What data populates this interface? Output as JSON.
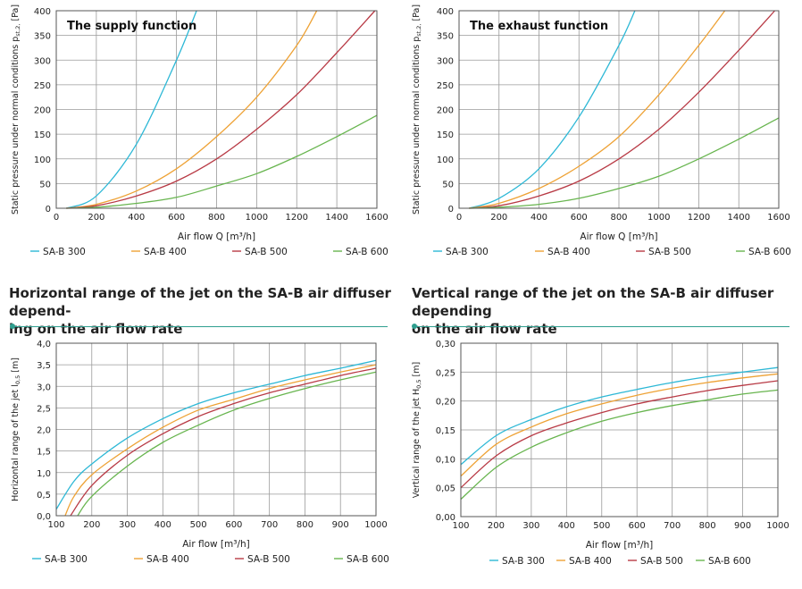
{
  "colors": {
    "sab300": "#2db8d6",
    "sab400": "#eea235",
    "sab500": "#b83a45",
    "sab600": "#68b54f",
    "grid": "#9a9a9a",
    "accent": "#2f9f8f"
  },
  "headings": {
    "horizontal": [
      "Horizontal range of the jet on the SA-B air diffuser depend-",
      "ing on the air flow rate"
    ],
    "vertical": [
      "Vertical range of the jet on the SA-B air diffuser depending",
      "on the air flow rate"
    ]
  },
  "chart_data": [
    {
      "id": "supply",
      "type": "line",
      "title": "The supply function",
      "xlabel": "Air flow Q [m³/h]",
      "ylabel": "Static pressure under normal conditions p",
      "ylabel_sub": "st,2,",
      "ylabel_unit": "[Pa]",
      "xlim": [
        0,
        1600
      ],
      "ylim": [
        0,
        400
      ],
      "xticks": [
        "0",
        "200",
        "400",
        "600",
        "800",
        "1000",
        "1200",
        "1400",
        "1600"
      ],
      "yticks": [
        "0",
        "50",
        "100",
        "150",
        "200",
        "250",
        "300",
        "350",
        "400"
      ],
      "grid": true,
      "legend_position": "bottom",
      "series": [
        {
          "name": "SA-B 300",
          "color": "#2db8d6",
          "x": [
            50,
            200,
            400,
            600,
            700
          ],
          "y": [
            0,
            25,
            130,
            300,
            400
          ]
        },
        {
          "name": "SA-B 400",
          "color": "#eea235",
          "x": [
            50,
            200,
            400,
            600,
            800,
            1000,
            1200,
            1300
          ],
          "y": [
            0,
            8,
            35,
            80,
            145,
            225,
            330,
            400
          ]
        },
        {
          "name": "SA-B 500",
          "color": "#b83a45",
          "x": [
            50,
            200,
            400,
            600,
            800,
            1000,
            1200,
            1400,
            1590
          ],
          "y": [
            0,
            5,
            25,
            55,
            100,
            160,
            230,
            315,
            400
          ]
        },
        {
          "name": "SA-B 600",
          "color": "#68b54f",
          "x": [
            50,
            200,
            400,
            600,
            800,
            1000,
            1200,
            1400,
            1600
          ],
          "y": [
            0,
            2,
            10,
            22,
            45,
            70,
            105,
            145,
            188
          ]
        }
      ]
    },
    {
      "id": "exhaust",
      "type": "line",
      "title": "The exhaust function",
      "xlabel": "Air flow Q [m³/h]",
      "ylabel": "Static pressure under normal conditions p",
      "ylabel_sub": "st,2,",
      "ylabel_unit": "[Pa]",
      "xlim": [
        0,
        1600
      ],
      "ylim": [
        0,
        400
      ],
      "xticks": [
        "0",
        "200",
        "400",
        "600",
        "800",
        "1000",
        "1200",
        "1400",
        "1600"
      ],
      "yticks": [
        "0",
        "50",
        "100",
        "150",
        "200",
        "250",
        "300",
        "350",
        "400"
      ],
      "grid": true,
      "legend_position": "bottom",
      "series": [
        {
          "name": "SA-B 300",
          "color": "#2db8d6",
          "x": [
            50,
            200,
            400,
            600,
            800,
            880
          ],
          "y": [
            0,
            20,
            80,
            185,
            330,
            400
          ]
        },
        {
          "name": "SA-B 400",
          "color": "#eea235",
          "x": [
            50,
            200,
            400,
            600,
            800,
            1000,
            1200,
            1330
          ],
          "y": [
            0,
            10,
            40,
            85,
            145,
            230,
            330,
            400
          ]
        },
        {
          "name": "SA-B 500",
          "color": "#b83a45",
          "x": [
            50,
            200,
            400,
            600,
            800,
            1000,
            1200,
            1400,
            1580
          ],
          "y": [
            0,
            5,
            25,
            55,
            100,
            160,
            235,
            320,
            400
          ]
        },
        {
          "name": "SA-B 600",
          "color": "#68b54f",
          "x": [
            50,
            200,
            400,
            600,
            800,
            1000,
            1200,
            1400,
            1600
          ],
          "y": [
            0,
            2,
            8,
            20,
            40,
            65,
            100,
            140,
            183
          ]
        }
      ]
    },
    {
      "id": "horizontal",
      "type": "line",
      "title": "",
      "xlabel": "Air flow [m³/h]",
      "ylabel": "Horizontal range of the jet l",
      "ylabel_sub": "0,5",
      "ylabel_unit": "[m]",
      "xlim": [
        100,
        1000
      ],
      "ylim": [
        0,
        4
      ],
      "xticks": [
        "100",
        "200",
        "300",
        "400",
        "500",
        "600",
        "700",
        "800",
        "900",
        "1000"
      ],
      "yticks": [
        "0,0",
        "0,5",
        "1,0",
        "1,5",
        "2,0",
        "2,5",
        "3,0",
        "3,5",
        "4,0"
      ],
      "grid": true,
      "legend_position": "bottom",
      "series": [
        {
          "name": "SA-B 300",
          "color": "#2db8d6",
          "x": [
            100,
            150,
            200,
            300,
            400,
            500,
            600,
            700,
            800,
            900,
            1000
          ],
          "y": [
            0.15,
            0.8,
            1.2,
            1.8,
            2.25,
            2.6,
            2.85,
            3.05,
            3.25,
            3.42,
            3.6
          ]
        },
        {
          "name": "SA-B 400",
          "color": "#eea235",
          "x": [
            125,
            150,
            200,
            300,
            400,
            500,
            600,
            700,
            800,
            900,
            1000
          ],
          "y": [
            0,
            0.45,
            0.95,
            1.55,
            2.05,
            2.45,
            2.7,
            2.95,
            3.15,
            3.33,
            3.5
          ]
        },
        {
          "name": "SA-B 500",
          "color": "#b83a45",
          "x": [
            140,
            200,
            300,
            400,
            500,
            600,
            700,
            800,
            900,
            1000
          ],
          "y": [
            0,
            0.7,
            1.4,
            1.9,
            2.3,
            2.6,
            2.85,
            3.05,
            3.25,
            3.42
          ]
        },
        {
          "name": "SA-B 600",
          "color": "#68b54f",
          "x": [
            160,
            200,
            300,
            400,
            500,
            600,
            700,
            800,
            900,
            1000
          ],
          "y": [
            0,
            0.45,
            1.15,
            1.7,
            2.1,
            2.45,
            2.72,
            2.95,
            3.15,
            3.33
          ]
        }
      ]
    },
    {
      "id": "vertical",
      "type": "line",
      "title": "",
      "xlabel": "Air flow [m³/h]",
      "ylabel": "Vertical range of the jet H",
      "ylabel_sub": "0,5",
      "ylabel_unit": "[m]",
      "xlim": [
        100,
        1000
      ],
      "ylim": [
        0,
        0.3
      ],
      "xticks": [
        "100",
        "200",
        "300",
        "400",
        "500",
        "600",
        "700",
        "800",
        "900",
        "1000"
      ],
      "yticks": [
        "0,00",
        "0,05",
        "0,10",
        "0,15",
        "0,20",
        "0,25",
        "0,30"
      ],
      "grid": true,
      "legend_position": "bottom",
      "series": [
        {
          "name": "SA-B 300",
          "color": "#2db8d6",
          "x": [
            100,
            200,
            300,
            400,
            500,
            600,
            700,
            800,
            900,
            1000
          ],
          "y": [
            0.09,
            0.14,
            0.168,
            0.19,
            0.207,
            0.22,
            0.232,
            0.242,
            0.25,
            0.258
          ]
        },
        {
          "name": "SA-B 400",
          "color": "#eea235",
          "x": [
            100,
            200,
            300,
            400,
            500,
            600,
            700,
            800,
            900,
            1000
          ],
          "y": [
            0.07,
            0.125,
            0.155,
            0.178,
            0.195,
            0.21,
            0.222,
            0.232,
            0.24,
            0.247
          ]
        },
        {
          "name": "SA-B 500",
          "color": "#b83a45",
          "x": [
            100,
            200,
            300,
            400,
            500,
            600,
            700,
            800,
            900,
            1000
          ],
          "y": [
            0.05,
            0.105,
            0.14,
            0.162,
            0.18,
            0.195,
            0.207,
            0.218,
            0.227,
            0.235
          ]
        },
        {
          "name": "SA-B 600",
          "color": "#68b54f",
          "x": [
            100,
            200,
            300,
            400,
            500,
            600,
            700,
            800,
            900,
            1000
          ],
          "y": [
            0.03,
            0.085,
            0.12,
            0.145,
            0.165,
            0.18,
            0.192,
            0.202,
            0.212,
            0.219
          ]
        }
      ]
    }
  ]
}
